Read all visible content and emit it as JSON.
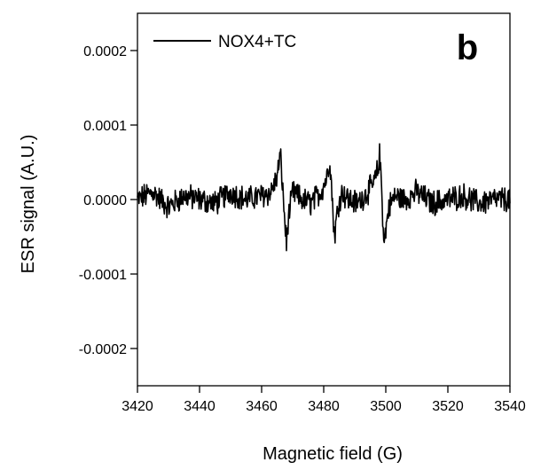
{
  "chart_data": {
    "type": "line",
    "panel_label": "b",
    "xlabel": "Magnetic field (G)",
    "ylabel": "ESR signal (A.U.)",
    "xlim": [
      3420,
      3540
    ],
    "ylim": [
      -0.00025,
      0.00025
    ],
    "x_ticks": [
      3420,
      3440,
      3460,
      3480,
      3500,
      3520,
      3540
    ],
    "x_tick_labels": [
      "3420",
      "3440",
      "3460",
      "3480",
      "3500",
      "3520",
      "3540"
    ],
    "y_ticks": [
      0.0002,
      0.0001,
      0.0,
      -0.0001,
      -0.0002
    ],
    "y_tick_labels": [
      "0.0002",
      "0.0001",
      "0.0000",
      "-0.0001",
      "-0.0002"
    ],
    "grid": false,
    "legend_position": "top-left",
    "series": [
      {
        "name": "NOX4+TC",
        "color": "#000000",
        "noise_amplitude": 1.5e-05,
        "x": [
          3420,
          3425,
          3430,
          3435,
          3440,
          3445,
          3450,
          3455,
          3460,
          3463,
          3465,
          3466,
          3466.5,
          3467,
          3467.5,
          3468,
          3468.5,
          3470,
          3473,
          3476,
          3479,
          3481,
          3482,
          3482.5,
          3483,
          3483.5,
          3484,
          3485,
          3486,
          3488,
          3491,
          3494,
          3496,
          3497.5,
          3498,
          3498.5,
          3499,
          3499.5,
          3500,
          3501,
          3503,
          3506,
          3510,
          3515,
          3520,
          3525,
          3530,
          3535,
          3540
        ],
        "y": [
          0.0,
          1e-05,
          -1e-05,
          5e-06,
          0.0,
          -5e-06,
          1e-05,
          0.0,
          5e-06,
          1e-05,
          3e-05,
          6e-05,
          3.5e-05,
          0.0,
          -3e-05,
          -6e-05,
          -3e-05,
          1e-05,
          0.0,
          -5e-06,
          1e-05,
          3e-05,
          5.5e-05,
          2e-05,
          -2e-05,
          -5e-05,
          -3e-05,
          0.0,
          1e-05,
          0.0,
          -5e-06,
          1e-05,
          2e-05,
          4e-05,
          6e-05,
          3e-05,
          -2e-05,
          -6e-05,
          -4e-05,
          -1e-05,
          5e-06,
          0.0,
          1e-05,
          -5e-06,
          0.0,
          5e-06,
          -5e-06,
          0.0,
          0.0
        ]
      }
    ]
  }
}
